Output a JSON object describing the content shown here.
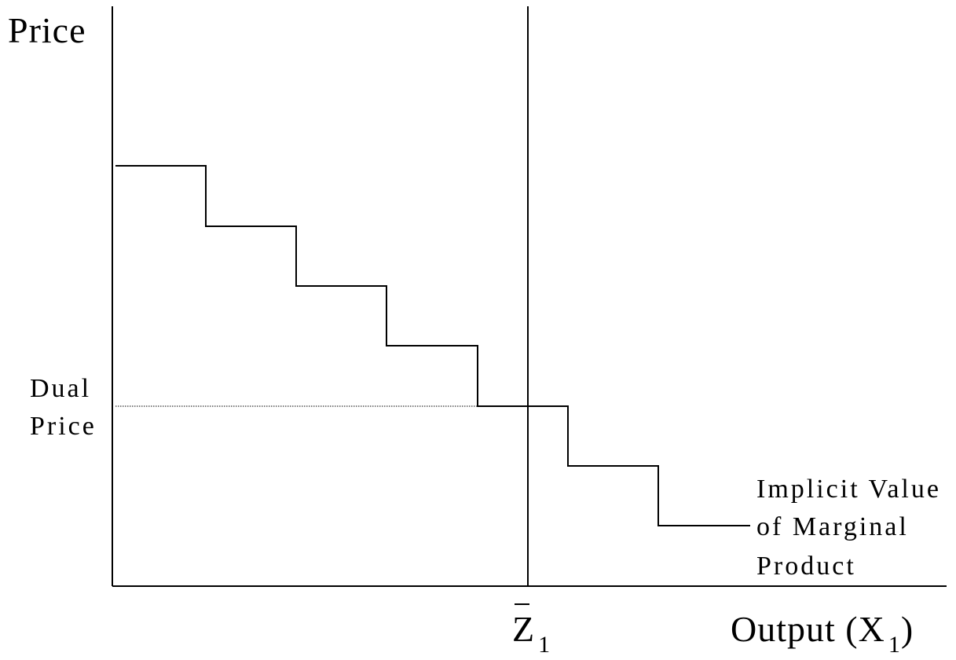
{
  "axes": {
    "y_label": "Price",
    "x_label_main": "Output (X",
    "x_label_sub": "1",
    "x_label_close": ")"
  },
  "labels": {
    "dual_price_line1": "Dual",
    "dual_price_line2": "Price",
    "curve_line1": "Implicit Value",
    "curve_line2": "of Marginal",
    "curve_line3": "Product",
    "z_bar": "Z",
    "z_sub": "1"
  },
  "colors": {
    "line": "#000000",
    "background": "#ffffff"
  }
}
